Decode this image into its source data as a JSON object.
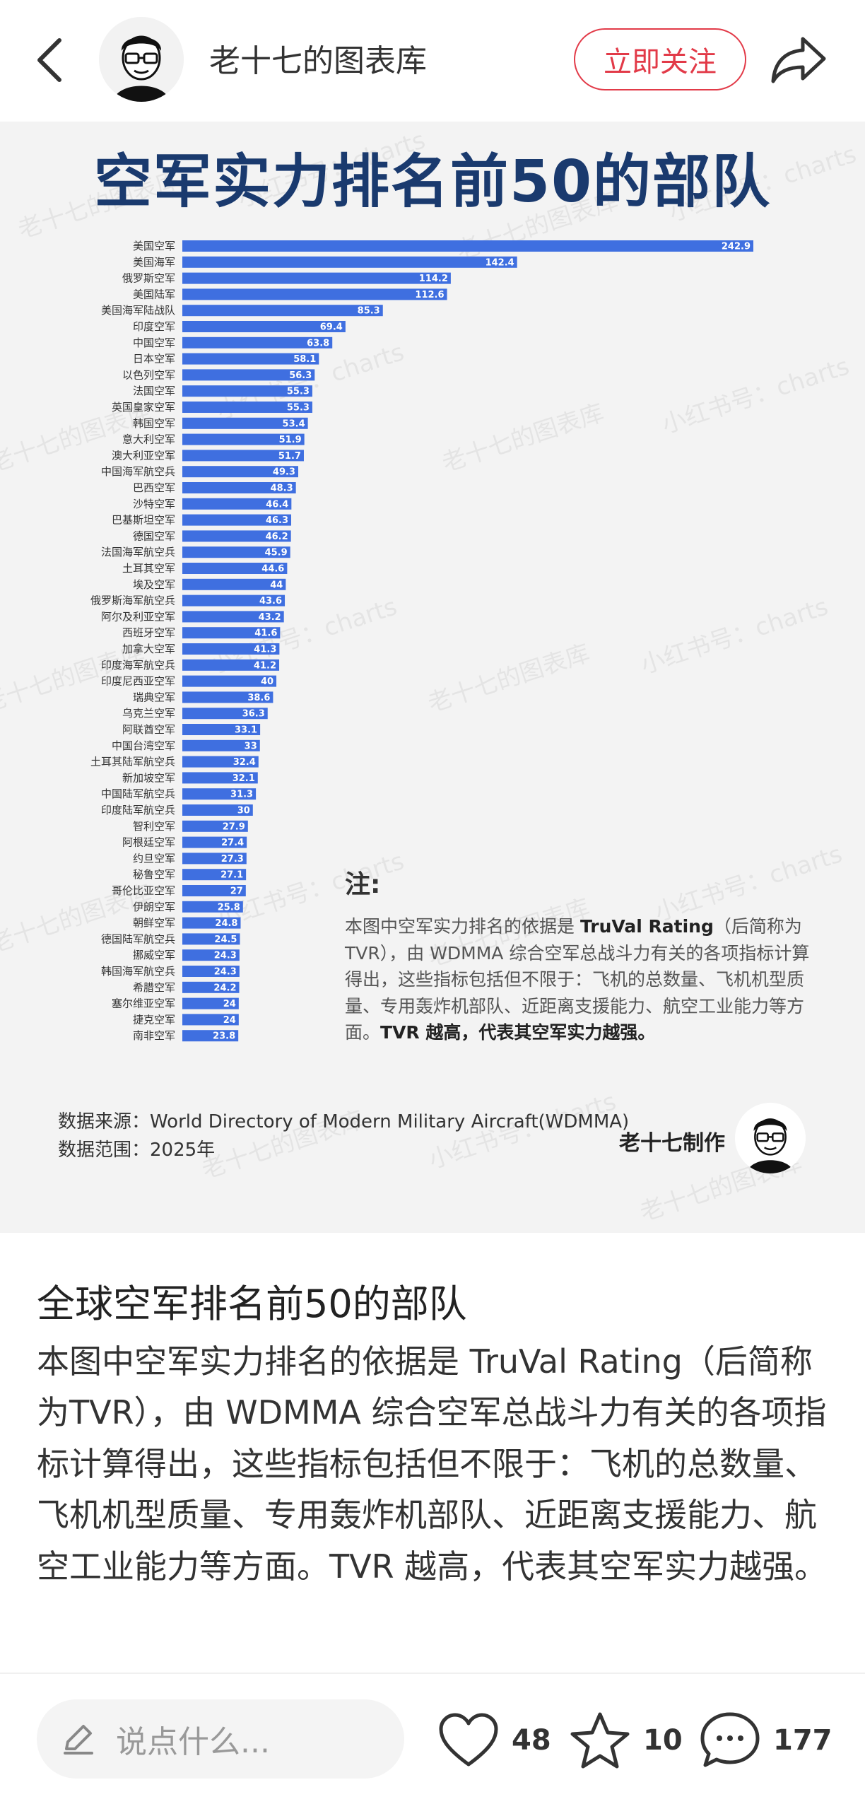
{
  "header": {
    "author": "老十七的图表库",
    "follow_label": "立即关注"
  },
  "image": {
    "title": "空军实力排名前50的部队",
    "watermark": [
      "老十七的图表库",
      "小红书号：charts"
    ],
    "note_title": "注:",
    "note_body_pre": "本图中空军实力排名的依据是",
    "note_body_tvr": "TruVal Rating",
    "note_body_mid": "（后简称为TVR），由 WDMMA 综合空军总战斗力有关的各项指标计算得出，这些指标包括但不限于：飞机的总数量、飞机机型质量、专用轰炸机部队、近距离支援能力、航空工业能力等方面。",
    "note_body_bold": "TVR 越高，代表其空军实力越强。",
    "source_line": "数据来源：World Directory of Modern Military Aircraft(WDMMA)",
    "range_line": "数据范围：2025年",
    "maker": "老十七制作"
  },
  "chart_data": {
    "type": "bar",
    "orientation": "horizontal",
    "title": "空军实力排名前50的部队",
    "bar_color": "#3f6fe0",
    "categories": [
      "美国空军",
      "美国海军",
      "俄罗斯空军",
      "美国陆军",
      "美国海军陆战队",
      "印度空军",
      "中国空军",
      "日本空军",
      "以色列空军",
      "法国空军",
      "英国皇家空军",
      "韩国空军",
      "意大利空军",
      "澳大利亚空军",
      "中国海军航空兵",
      "巴西空军",
      "沙特空军",
      "巴基斯坦空军",
      "德国空军",
      "法国海军航空兵",
      "土耳其空军",
      "埃及空军",
      "俄罗斯海军航空兵",
      "阿尔及利亚空军",
      "西班牙空军",
      "加拿大空军",
      "印度海军航空兵",
      "印度尼西亚空军",
      "瑞典空军",
      "乌克兰空军",
      "阿联酋空军",
      "中国台湾空军",
      "土耳其陆军航空兵",
      "新加坡空军",
      "中国陆军航空兵",
      "印度陆军航空兵",
      "智利空军",
      "阿根廷空军",
      "约旦空军",
      "秘鲁空军",
      "哥伦比亚空军",
      "伊朗空军",
      "朝鲜空军",
      "德国陆军航空兵",
      "挪威空军",
      "韩国海军航空兵",
      "希腊空军",
      "塞尔维亚空军",
      "捷克空军",
      "南非空军"
    ],
    "values": [
      242.9,
      142.4,
      114.2,
      112.6,
      85.3,
      69.4,
      63.8,
      58.1,
      56.3,
      55.3,
      55.3,
      53.4,
      51.9,
      51.7,
      49.3,
      48.3,
      46.4,
      46.3,
      46.2,
      45.9,
      44.6,
      44,
      43.6,
      43.2,
      41.6,
      41.3,
      41.2,
      40,
      38.6,
      36.3,
      33.1,
      33,
      32.4,
      32.1,
      31.3,
      30,
      27.9,
      27.4,
      27.3,
      27.1,
      27,
      25.8,
      24.8,
      24.5,
      24.3,
      24.3,
      24.2,
      24,
      24,
      23.8
    ],
    "value_labels": [
      "242.9",
      "142.4",
      "114.2",
      "112.6",
      "85.3",
      "69.4",
      "63.8",
      "58.1",
      "56.3",
      "55.3",
      "55.3",
      "53.4",
      "51.9",
      "51.7",
      "49.3",
      "48.3",
      "46.4",
      "46.3",
      "46.2",
      "45.9",
      "44.6",
      "44",
      "43.6",
      "43.2",
      "41.6",
      "41.3",
      "41.2",
      "40",
      "38.6",
      "36.3",
      "33.1",
      "33",
      "32.4",
      "32.1",
      "31.3",
      "30",
      "27.9",
      "27.4",
      "27.3",
      "27.1",
      "27",
      "25.8",
      "24.8",
      "24.5",
      "24.3",
      "24.3",
      "24.2",
      "24",
      "24",
      "23.8"
    ],
    "xlim": [
      0,
      242.9
    ],
    "grid": false,
    "xlabel": "",
    "ylabel": ""
  },
  "post": {
    "title": "全球空军排名前50的部队",
    "body": "本图中空军实力排名的依据是 TruVal Rating（后简称为TVR），由 WDMMA 综合空军总战斗力有关的各项指标计算得出，这些指标包括但不限于：飞机的总数量、飞机机型质量、专用轰炸机部队、近距离支援能力、航空工业能力等方面。TVR 越高，代表其空军实力越强。"
  },
  "bottom": {
    "comment_placeholder": "说点什么...",
    "likes": "48",
    "collects": "10",
    "comments": "177"
  },
  "icons": {
    "back": "back-arrow-icon",
    "share": "share-icon",
    "pen": "pen-icon",
    "like": "heart-icon",
    "collect": "star-icon",
    "comment": "comment-bubble-icon"
  },
  "colors": {
    "accent": "#e23a48",
    "title": "#1a3a6e",
    "bar": "#3f6fe0"
  }
}
